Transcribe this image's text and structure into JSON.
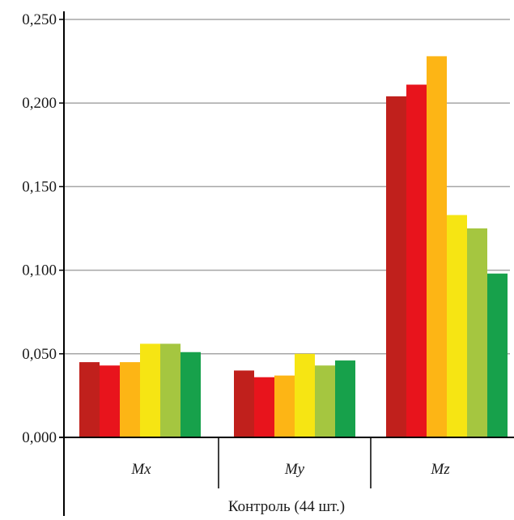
{
  "chart_data": {
    "type": "bar",
    "title": "",
    "xlabel": "",
    "ylabel": "",
    "ylim": [
      0,
      0.25
    ],
    "yticks": [
      "0,000",
      "0,050",
      "0,100",
      "0,150",
      "0,200",
      "0,250"
    ],
    "ytick_values": [
      0,
      0.05,
      0.1,
      0.15,
      0.2,
      0.25
    ],
    "grid": true,
    "categories": [
      "Mx",
      "My",
      "Mz"
    ],
    "group_label": "Контроль (44 шт.)",
    "series": [
      {
        "color": "#c0201c",
        "values": [
          0.045,
          0.04,
          0.204
        ]
      },
      {
        "color": "#e8141c",
        "values": [
          0.043,
          0.036,
          0.211
        ]
      },
      {
        "color": "#fdb515",
        "values": [
          0.045,
          0.037,
          0.228
        ]
      },
      {
        "color": "#f6e513",
        "values": [
          0.056,
          0.05,
          0.133
        ]
      },
      {
        "color": "#a5c640",
        "values": [
          0.056,
          0.043,
          0.125
        ]
      },
      {
        "color": "#17a14b",
        "values": [
          0.051,
          0.046,
          0.098
        ]
      }
    ],
    "axis_color": "#000000",
    "grid_color": "#a6a6a6"
  }
}
